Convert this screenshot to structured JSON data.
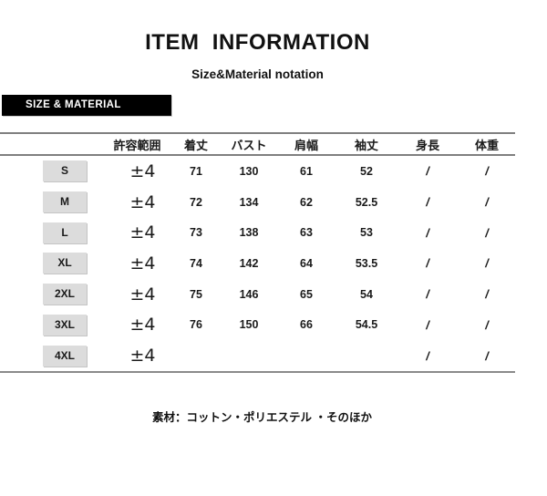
{
  "header": {
    "title": "ITEM  INFORMATION",
    "subtitle": "Size&Material notation"
  },
  "section_label": "SIZE & MATERIAL",
  "table": {
    "columns": [
      "許容範囲",
      "着丈",
      "バスト",
      "肩幅",
      "袖丈",
      "身長",
      "体重"
    ],
    "rows": [
      {
        "size": "S",
        "tolerance": "±4",
        "body_length": "71",
        "bust": "130",
        "shoulder_width": "61",
        "sleeve_length": "52",
        "height": "/",
        "weight": "/"
      },
      {
        "size": "M",
        "tolerance": "±4",
        "body_length": "72",
        "bust": "134",
        "shoulder_width": "62",
        "sleeve_length": "52.5",
        "height": "/",
        "weight": "/"
      },
      {
        "size": "L",
        "tolerance": "±4",
        "body_length": "73",
        "bust": "138",
        "shoulder_width": "63",
        "sleeve_length": "53",
        "height": "/",
        "weight": "/"
      },
      {
        "size": "XL",
        "tolerance": "±4",
        "body_length": "74",
        "bust": "142",
        "shoulder_width": "64",
        "sleeve_length": "53.5",
        "height": "/",
        "weight": "/"
      },
      {
        "size": "2XL",
        "tolerance": "±4",
        "body_length": "75",
        "bust": "146",
        "shoulder_width": "65",
        "sleeve_length": "54",
        "height": "/",
        "weight": "/"
      },
      {
        "size": "3XL",
        "tolerance": "±4",
        "body_length": "76",
        "bust": "150",
        "shoulder_width": "66",
        "sleeve_length": "54.5",
        "height": "/",
        "weight": "/"
      },
      {
        "size": "4XL",
        "tolerance": "±4",
        "body_length": "",
        "bust": "",
        "shoulder_width": "",
        "sleeve_length": "",
        "height": "/",
        "weight": "/"
      }
    ]
  },
  "material_note": "素材：コットン・ポリエステル ・そのほか",
  "colors": {
    "label_bg": "#000000",
    "label_text": "#ffffff",
    "size_cell_bg": "#dcdcdc",
    "rule_line": "#7f7f7f",
    "text": "#1a1a1a"
  }
}
